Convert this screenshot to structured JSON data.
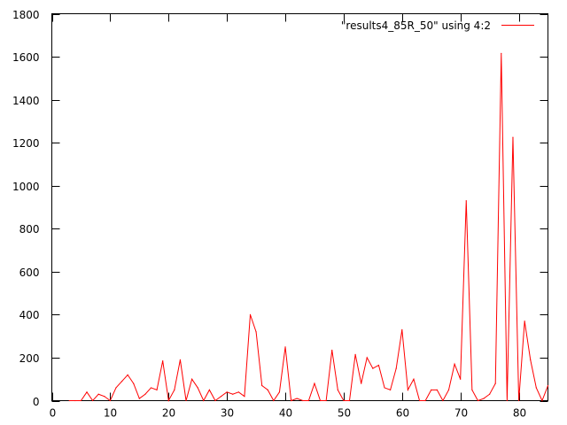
{
  "chart_data": {
    "type": "line",
    "title": "",
    "xlabel": "",
    "ylabel": "",
    "xlim": [
      0,
      85
    ],
    "ylim": [
      0,
      1800
    ],
    "xticks": [
      0,
      10,
      20,
      30,
      40,
      50,
      60,
      70,
      80
    ],
    "yticks": [
      0,
      200,
      400,
      600,
      800,
      1000,
      1200,
      1400,
      1600,
      1800
    ],
    "grid": false,
    "legend_position": "top-right",
    "series": [
      {
        "name": "\"results4_85R_50\" using 4:2",
        "color": "#ff0000",
        "x": [
          3,
          4,
          5,
          6,
          7,
          8,
          9,
          10,
          11,
          12,
          13,
          14,
          15,
          16,
          17,
          18,
          19,
          20,
          21,
          22,
          23,
          24,
          25,
          26,
          27,
          28,
          29,
          30,
          31,
          32,
          33,
          34,
          35,
          36,
          37,
          38,
          39,
          40,
          41,
          42,
          43,
          44,
          45,
          46,
          47,
          48,
          49,
          50,
          51,
          52,
          53,
          54,
          55,
          56,
          57,
          58,
          59,
          60,
          61,
          62,
          63,
          64,
          65,
          66,
          67,
          68,
          69,
          70,
          71,
          72,
          73,
          74,
          75,
          76,
          77,
          78,
          79,
          80,
          81,
          82,
          83,
          84,
          85
        ],
        "y": [
          0,
          0,
          0,
          40,
          0,
          30,
          20,
          0,
          60,
          90,
          120,
          80,
          10,
          30,
          60,
          50,
          185,
          0,
          50,
          190,
          0,
          100,
          60,
          0,
          50,
          0,
          20,
          40,
          30,
          40,
          20,
          400,
          320,
          70,
          50,
          0,
          40,
          250,
          0,
          10,
          0,
          0,
          80,
          0,
          0,
          235,
          50,
          0,
          0,
          215,
          80,
          200,
          150,
          165,
          60,
          50,
          150,
          330,
          50,
          100,
          0,
          0,
          50,
          50,
          0,
          50,
          170,
          100,
          930,
          50,
          0,
          10,
          30,
          80,
          1615,
          0,
          1225,
          0,
          370,
          190,
          60,
          0,
          70
        ]
      }
    ]
  }
}
